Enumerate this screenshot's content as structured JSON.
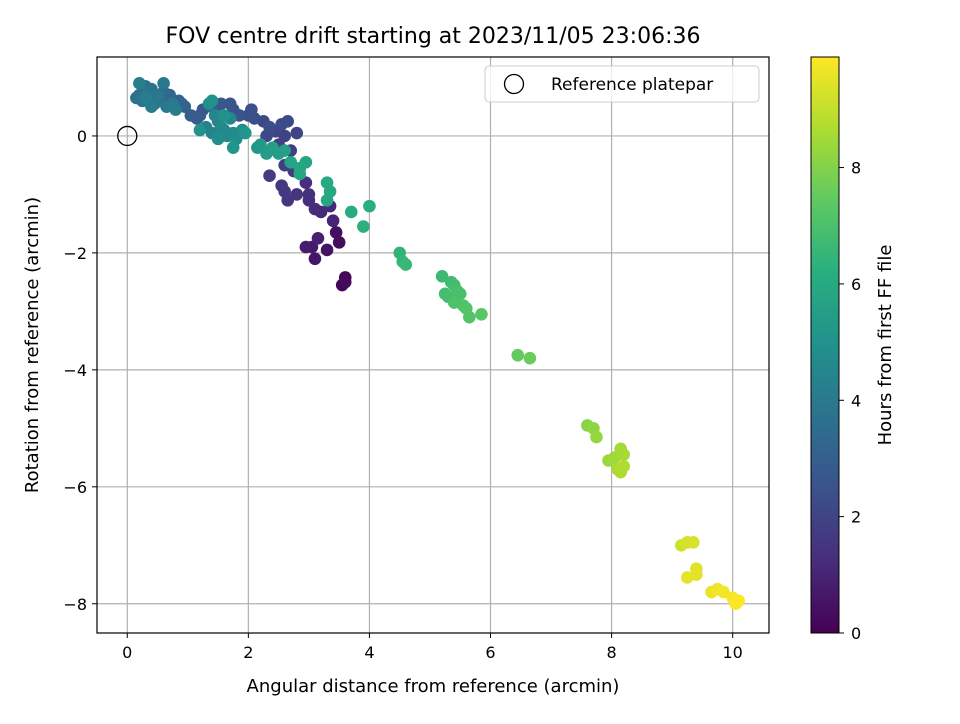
{
  "chart_data": {
    "type": "scatter",
    "title": "FOV centre drift starting at 2023/11/05 23:06:36",
    "xlabel": "Angular distance from reference (arcmin)",
    "ylabel": "Rotation from reference (arcmin)",
    "xlim": [
      -0.5,
      10.6
    ],
    "ylim": [
      -8.5,
      1.35
    ],
    "xticks": [
      0,
      2,
      4,
      6,
      8,
      10
    ],
    "yticks": [
      0,
      -2,
      -4,
      -6,
      -8
    ],
    "grid": true,
    "colormap": "viridis",
    "colorbar": {
      "label": "Hours from first FF file",
      "range": [
        0,
        9.9
      ],
      "ticks": [
        0,
        2,
        4,
        6,
        8
      ]
    },
    "legend": {
      "placement": "top-right",
      "entries": [
        {
          "label": "Reference platepar",
          "marker": "hollow-circle",
          "x": 0,
          "y": 0
        }
      ]
    },
    "points": [
      {
        "x": 3.55,
        "y": -2.55,
        "h": 0.1
      },
      {
        "x": 3.6,
        "y": -2.42,
        "h": 0.2
      },
      {
        "x": 3.6,
        "y": -2.5,
        "h": 0.25
      },
      {
        "x": 3.5,
        "y": -1.82,
        "h": 0.3
      },
      {
        "x": 3.45,
        "y": -1.65,
        "h": 0.4
      },
      {
        "x": 3.3,
        "y": -1.95,
        "h": 0.5
      },
      {
        "x": 3.1,
        "y": -2.1,
        "h": 0.6
      },
      {
        "x": 3.05,
        "y": -1.9,
        "h": 0.7
      },
      {
        "x": 2.95,
        "y": -1.9,
        "h": 0.8
      },
      {
        "x": 3.15,
        "y": -1.75,
        "h": 0.9
      },
      {
        "x": 3.4,
        "y": -1.45,
        "h": 1.0
      },
      {
        "x": 3.2,
        "y": -1.3,
        "h": 1.1
      },
      {
        "x": 3.35,
        "y": -1.2,
        "h": 1.15
      },
      {
        "x": 3.1,
        "y": -1.25,
        "h": 1.2
      },
      {
        "x": 3.0,
        "y": -1.1,
        "h": 1.25
      },
      {
        "x": 2.95,
        "y": -0.8,
        "h": 1.3
      },
      {
        "x": 3.0,
        "y": -1.0,
        "h": 1.4
      },
      {
        "x": 2.8,
        "y": -1.0,
        "h": 1.5
      },
      {
        "x": 2.65,
        "y": -1.1,
        "h": 1.55
      },
      {
        "x": 2.55,
        "y": -0.85,
        "h": 1.6
      },
      {
        "x": 2.6,
        "y": -0.95,
        "h": 1.65
      },
      {
        "x": 2.75,
        "y": -0.6,
        "h": 1.7
      },
      {
        "x": 2.35,
        "y": -0.68,
        "h": 1.75
      },
      {
        "x": 2.6,
        "y": -0.5,
        "h": 1.8
      },
      {
        "x": 2.7,
        "y": -0.25,
        "h": 1.85
      },
      {
        "x": 2.5,
        "y": -0.15,
        "h": 1.9
      },
      {
        "x": 2.6,
        "y": 0.0,
        "h": 1.95
      },
      {
        "x": 2.8,
        "y": 0.05,
        "h": 2.0
      },
      {
        "x": 2.45,
        "y": 0.08,
        "h": 2.05
      },
      {
        "x": 2.3,
        "y": 0.0,
        "h": 2.1
      },
      {
        "x": 2.25,
        "y": 0.25,
        "h": 2.15
      },
      {
        "x": 2.65,
        "y": 0.25,
        "h": 2.2
      },
      {
        "x": 2.55,
        "y": 0.2,
        "h": 2.25
      },
      {
        "x": 2.35,
        "y": 0.15,
        "h": 2.3
      },
      {
        "x": 2.1,
        "y": 0.3,
        "h": 2.35
      },
      {
        "x": 2.0,
        "y": 0.35,
        "h": 2.4
      },
      {
        "x": 2.05,
        "y": 0.45,
        "h": 2.45
      },
      {
        "x": 1.85,
        "y": 0.35,
        "h": 2.5
      },
      {
        "x": 1.75,
        "y": 0.45,
        "h": 2.55
      },
      {
        "x": 1.7,
        "y": 0.55,
        "h": 2.6
      },
      {
        "x": 1.55,
        "y": 0.55,
        "h": 2.65
      },
      {
        "x": 1.45,
        "y": 0.45,
        "h": 2.7
      },
      {
        "x": 1.25,
        "y": 0.45,
        "h": 2.75
      },
      {
        "x": 1.2,
        "y": 0.35,
        "h": 2.8
      },
      {
        "x": 1.15,
        "y": 0.3,
        "h": 2.85
      },
      {
        "x": 1.05,
        "y": 0.35,
        "h": 2.9
      },
      {
        "x": 0.95,
        "y": 0.5,
        "h": 3.0
      },
      {
        "x": 0.9,
        "y": 0.55,
        "h": 3.1
      },
      {
        "x": 0.85,
        "y": 0.6,
        "h": 3.2
      },
      {
        "x": 0.7,
        "y": 0.7,
        "h": 3.3
      },
      {
        "x": 0.6,
        "y": 0.75,
        "h": 3.4
      },
      {
        "x": 0.55,
        "y": 0.6,
        "h": 3.5
      },
      {
        "x": 0.4,
        "y": 0.8,
        "h": 3.55
      },
      {
        "x": 0.3,
        "y": 0.85,
        "h": 3.6
      },
      {
        "x": 0.2,
        "y": 0.7,
        "h": 3.65
      },
      {
        "x": 0.15,
        "y": 0.65,
        "h": 3.7
      },
      {
        "x": 0.25,
        "y": 0.6,
        "h": 3.75
      },
      {
        "x": 0.35,
        "y": 0.75,
        "h": 3.8
      },
      {
        "x": 0.45,
        "y": 0.55,
        "h": 3.85
      },
      {
        "x": 0.5,
        "y": 0.7,
        "h": 3.9
      },
      {
        "x": 0.6,
        "y": 0.9,
        "h": 3.95
      },
      {
        "x": 0.65,
        "y": 0.5,
        "h": 4.0
      },
      {
        "x": 0.75,
        "y": 0.55,
        "h": 4.05
      },
      {
        "x": 0.8,
        "y": 0.45,
        "h": 4.1
      },
      {
        "x": 0.4,
        "y": 0.5,
        "h": 4.15
      },
      {
        "x": 0.3,
        "y": 0.65,
        "h": 4.2
      },
      {
        "x": 0.2,
        "y": 0.9,
        "h": 4.25
      },
      {
        "x": 1.3,
        "y": 0.15,
        "h": 4.3
      },
      {
        "x": 1.4,
        "y": 0.05,
        "h": 4.35
      },
      {
        "x": 1.5,
        "y": 0.25,
        "h": 4.4
      },
      {
        "x": 1.6,
        "y": 0.1,
        "h": 4.45
      },
      {
        "x": 1.7,
        "y": 0.3,
        "h": 4.5
      },
      {
        "x": 1.45,
        "y": 0.35,
        "h": 4.55
      },
      {
        "x": 1.55,
        "y": 0.15,
        "h": 4.6
      },
      {
        "x": 1.65,
        "y": 0.0,
        "h": 4.65
      },
      {
        "x": 1.75,
        "y": 0.05,
        "h": 4.7
      },
      {
        "x": 1.8,
        "y": -0.05,
        "h": 4.75
      },
      {
        "x": 1.9,
        "y": 0.1,
        "h": 4.8
      },
      {
        "x": 1.5,
        "y": -0.05,
        "h": 4.85
      },
      {
        "x": 1.35,
        "y": 0.55,
        "h": 4.9
      },
      {
        "x": 1.4,
        "y": 0.6,
        "h": 4.95
      },
      {
        "x": 1.2,
        "y": 0.1,
        "h": 5.0
      },
      {
        "x": 1.6,
        "y": 0.35,
        "h": 5.05
      },
      {
        "x": 1.75,
        "y": -0.2,
        "h": 5.1
      },
      {
        "x": 1.95,
        "y": 0.05,
        "h": 5.15
      },
      {
        "x": 2.15,
        "y": -0.2,
        "h": 5.2
      },
      {
        "x": 2.2,
        "y": -0.15,
        "h": 5.3
      },
      {
        "x": 2.3,
        "y": -0.3,
        "h": 5.4
      },
      {
        "x": 2.4,
        "y": -0.2,
        "h": 5.5
      },
      {
        "x": 2.5,
        "y": -0.3,
        "h": 5.55
      },
      {
        "x": 2.6,
        "y": -0.25,
        "h": 5.6
      },
      {
        "x": 2.7,
        "y": -0.45,
        "h": 5.7
      },
      {
        "x": 2.85,
        "y": -0.55,
        "h": 5.75
      },
      {
        "x": 2.95,
        "y": -0.45,
        "h": 5.8
      },
      {
        "x": 2.85,
        "y": -0.65,
        "h": 5.85
      },
      {
        "x": 3.3,
        "y": -1.1,
        "h": 5.9
      },
      {
        "x": 3.35,
        "y": -0.95,
        "h": 5.95
      },
      {
        "x": 3.3,
        "y": -0.8,
        "h": 6.0
      },
      {
        "x": 3.7,
        "y": -1.3,
        "h": 6.1
      },
      {
        "x": 4.0,
        "y": -1.2,
        "h": 6.2
      },
      {
        "x": 3.9,
        "y": -1.55,
        "h": 6.3
      },
      {
        "x": 4.5,
        "y": -2.0,
        "h": 6.4
      },
      {
        "x": 4.55,
        "y": -2.15,
        "h": 6.5
      },
      {
        "x": 4.6,
        "y": -2.2,
        "h": 6.6
      },
      {
        "x": 5.2,
        "y": -2.4,
        "h": 6.7
      },
      {
        "x": 5.35,
        "y": -2.5,
        "h": 6.75
      },
      {
        "x": 5.4,
        "y": -2.55,
        "h": 6.8
      },
      {
        "x": 5.25,
        "y": -2.7,
        "h": 6.85
      },
      {
        "x": 5.3,
        "y": -2.75,
        "h": 6.9
      },
      {
        "x": 5.45,
        "y": -2.65,
        "h": 6.95
      },
      {
        "x": 5.5,
        "y": -2.7,
        "h": 7.0
      },
      {
        "x": 5.4,
        "y": -2.85,
        "h": 7.05
      },
      {
        "x": 5.55,
        "y": -2.9,
        "h": 7.1
      },
      {
        "x": 5.6,
        "y": -2.95,
        "h": 7.15
      },
      {
        "x": 5.65,
        "y": -3.1,
        "h": 7.2
      },
      {
        "x": 5.85,
        "y": -3.05,
        "h": 7.3
      },
      {
        "x": 6.45,
        "y": -3.75,
        "h": 7.5
      },
      {
        "x": 6.65,
        "y": -3.8,
        "h": 7.6
      },
      {
        "x": 7.6,
        "y": -4.95,
        "h": 8.1
      },
      {
        "x": 7.7,
        "y": -5.0,
        "h": 8.2
      },
      {
        "x": 7.75,
        "y": -5.15,
        "h": 8.3
      },
      {
        "x": 7.95,
        "y": -5.55,
        "h": 8.4
      },
      {
        "x": 8.05,
        "y": -5.5,
        "h": 8.45
      },
      {
        "x": 8.15,
        "y": -5.35,
        "h": 8.5
      },
      {
        "x": 8.2,
        "y": -5.45,
        "h": 8.55
      },
      {
        "x": 8.1,
        "y": -5.7,
        "h": 8.6
      },
      {
        "x": 8.15,
        "y": -5.75,
        "h": 8.65
      },
      {
        "x": 8.2,
        "y": -5.65,
        "h": 8.7
      },
      {
        "x": 9.15,
        "y": -7.0,
        "h": 9.2
      },
      {
        "x": 9.25,
        "y": -6.95,
        "h": 9.3
      },
      {
        "x": 9.35,
        "y": -6.95,
        "h": 9.35
      },
      {
        "x": 9.4,
        "y": -7.4,
        "h": 9.45
      },
      {
        "x": 9.4,
        "y": -7.5,
        "h": 9.5
      },
      {
        "x": 9.25,
        "y": -7.55,
        "h": 9.55
      },
      {
        "x": 9.65,
        "y": -7.8,
        "h": 9.6
      },
      {
        "x": 9.75,
        "y": -7.75,
        "h": 9.7
      },
      {
        "x": 9.85,
        "y": -7.8,
        "h": 9.75
      },
      {
        "x": 10.0,
        "y": -7.9,
        "h": 9.8
      },
      {
        "x": 10.05,
        "y": -8.0,
        "h": 9.85
      },
      {
        "x": 10.1,
        "y": -7.95,
        "h": 9.9
      }
    ]
  }
}
